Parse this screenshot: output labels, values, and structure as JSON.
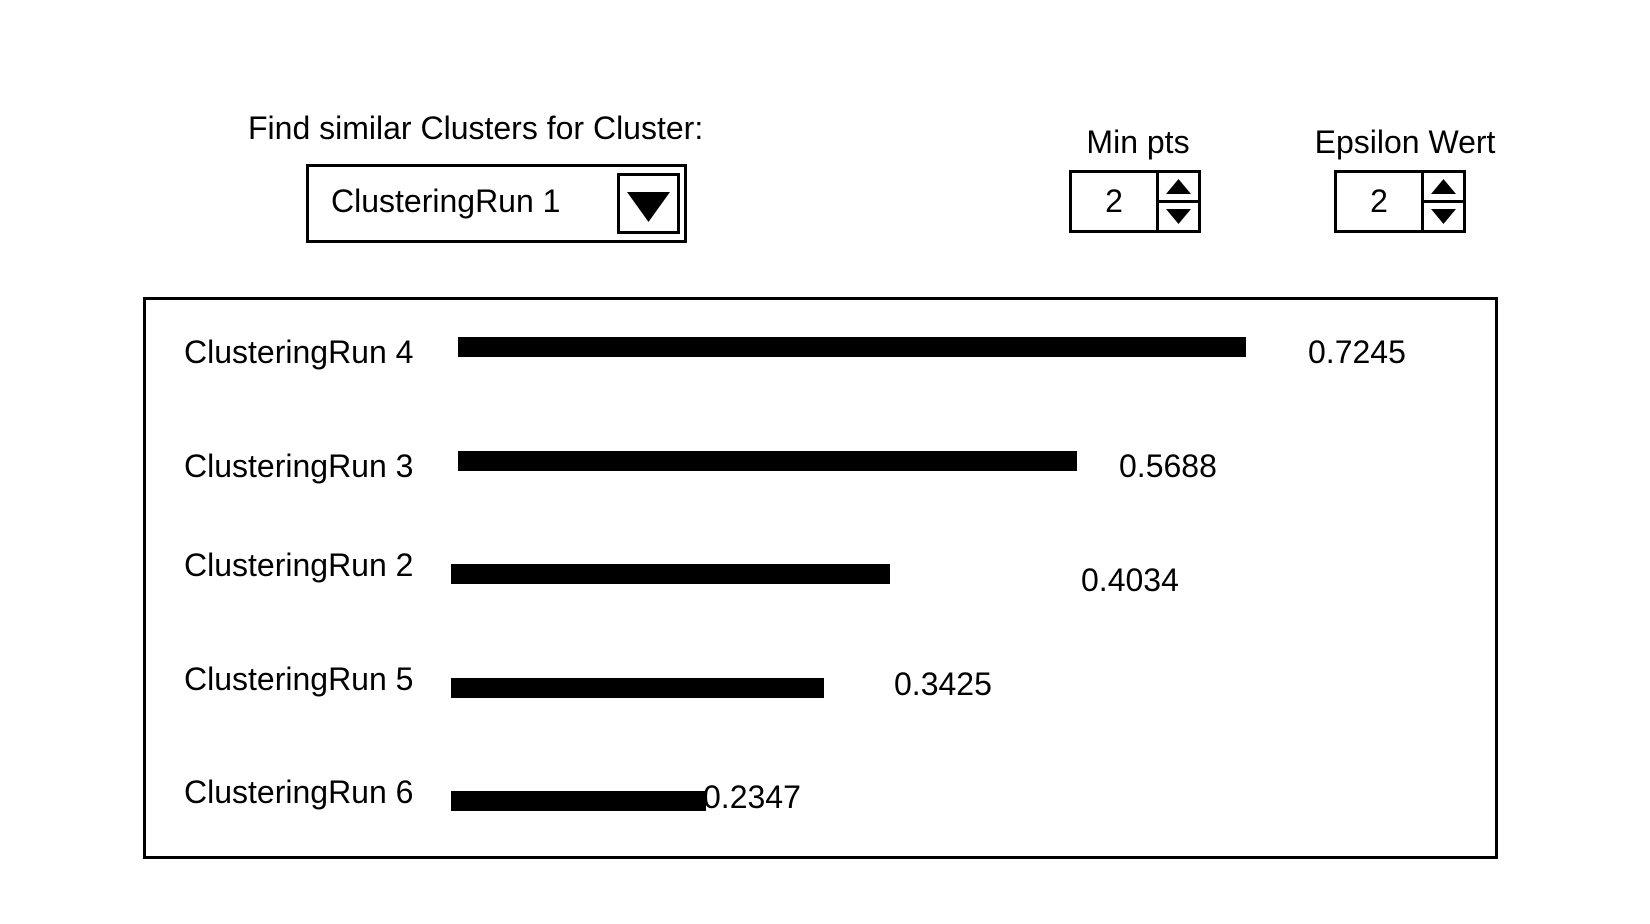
{
  "finder": {
    "label": "Find similar Clusters for Cluster:",
    "selected_cluster": "ClusteringRun 1",
    "dropdown_icon": "triangle-down-icon"
  },
  "min_pts": {
    "label": "Min pts",
    "value": "2"
  },
  "epsilon": {
    "label": "Epsilon Wert",
    "value": "2"
  },
  "results": {
    "rows": [
      {
        "name": "ClusteringRun 4",
        "score": "0.7245",
        "similarity": 0.7245
      },
      {
        "name": "ClusteringRun 3",
        "score": "0.5688",
        "similarity": 0.5688
      },
      {
        "name": "ClusteringRun 2",
        "score": "0.4034",
        "similarity": 0.4034
      },
      {
        "name": "ClusteringRun 5",
        "score": "0.3425",
        "similarity": 0.3425
      },
      {
        "name": "ClusteringRun 6",
        "score": "0.2347",
        "similarity": 0.2347
      }
    ]
  }
}
